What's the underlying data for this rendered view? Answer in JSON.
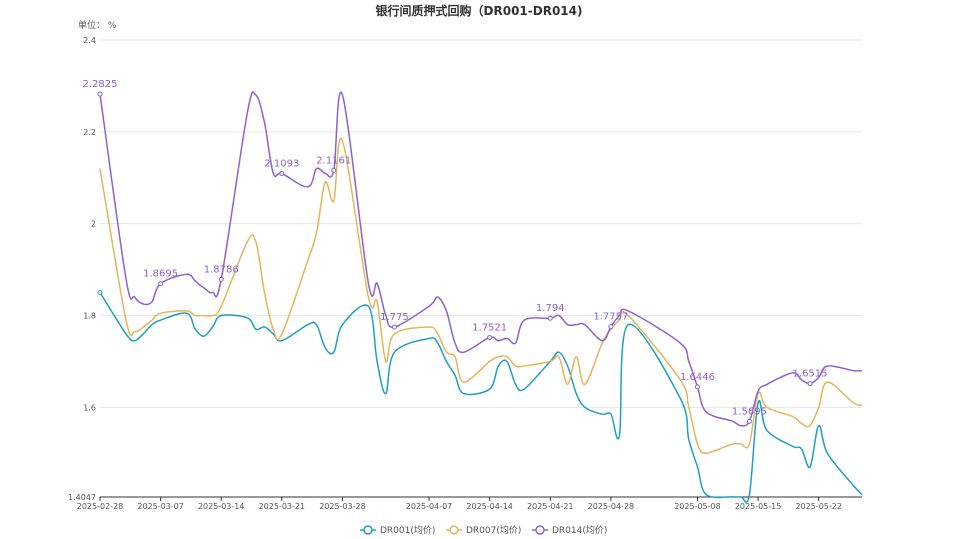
{
  "chart_data": {
    "type": "line",
    "title": "银行间质押式回购（DR001-DR014)",
    "unit_label": "单位： %",
    "ylim": [
      1.4047,
      2.4
    ],
    "y_ticks": [
      "2.4",
      "2.2",
      "2",
      "1.8",
      "1.6",
      "1.4047"
    ],
    "y_tick_values": [
      2.4,
      2.2,
      2.0,
      1.8,
      1.6,
      1.4047
    ],
    "x_start": "2025-02-28",
    "x_end": "2025-05-27",
    "x_ticks": [
      "2025-02-28",
      "2025-03-07",
      "2025-03-14",
      "2025-03-21",
      "2025-03-28",
      "2025-04-07",
      "2025-04-14",
      "2025-04-21",
      "2025-04-28",
      "2025-05-08",
      "2025-05-15",
      "2025-05-22"
    ],
    "grid": true,
    "legend_position": "bottom",
    "series": [
      {
        "name": "DR001(均价)",
        "color": "#1f9ec4",
        "points": [
          [
            "2025-02-28",
            1.85
          ],
          [
            "2025-03-03",
            1.76
          ],
          [
            "2025-03-04",
            1.745
          ],
          [
            "2025-03-05",
            1.76
          ],
          [
            "2025-03-06",
            1.78
          ],
          [
            "2025-03-07",
            1.79
          ],
          [
            "2025-03-10",
            1.805
          ],
          [
            "2025-03-11",
            1.77
          ],
          [
            "2025-03-12",
            1.755
          ],
          [
            "2025-03-13",
            1.775
          ],
          [
            "2025-03-14",
            1.8
          ],
          [
            "2025-03-17",
            1.795
          ],
          [
            "2025-03-18",
            1.77
          ],
          [
            "2025-03-19",
            1.775
          ],
          [
            "2025-03-20",
            1.76
          ],
          [
            "2025-03-21",
            1.745
          ],
          [
            "2025-03-24",
            1.78
          ],
          [
            "2025-03-25",
            1.78
          ],
          [
            "2025-03-26",
            1.73
          ],
          [
            "2025-03-27",
            1.72
          ],
          [
            "2025-03-28",
            1.78
          ],
          [
            "2025-03-31",
            1.82
          ],
          [
            "2025-04-01",
            1.7
          ],
          [
            "2025-04-02",
            1.63
          ],
          [
            "2025-04-03",
            1.72
          ],
          [
            "2025-04-07",
            1.75
          ],
          [
            "2025-04-08",
            1.74
          ],
          [
            "2025-04-09",
            1.7
          ],
          [
            "2025-04-10",
            1.67
          ],
          [
            "2025-04-11",
            1.63
          ],
          [
            "2025-04-14",
            1.64
          ],
          [
            "2025-04-15",
            1.69
          ],
          [
            "2025-04-16",
            1.7
          ],
          [
            "2025-04-17",
            1.65
          ],
          [
            "2025-04-18",
            1.64
          ],
          [
            "2025-04-21",
            1.7
          ],
          [
            "2025-04-22",
            1.72
          ],
          [
            "2025-04-23",
            1.69
          ],
          [
            "2025-04-24",
            1.63
          ],
          [
            "2025-04-25",
            1.6
          ],
          [
            "2025-04-27",
            1.585
          ],
          [
            "2025-04-28",
            1.585
          ],
          [
            "2025-04-29",
            1.54
          ],
          [
            "2025-04-30",
            1.78
          ],
          [
            "2025-05-06",
            1.62
          ],
          [
            "2025-05-07",
            1.53
          ],
          [
            "2025-05-08",
            1.47
          ],
          [
            "2025-05-09",
            1.41
          ],
          [
            "2025-05-12",
            1.405
          ],
          [
            "2025-05-13",
            1.405
          ],
          [
            "2025-05-14",
            1.41
          ],
          [
            "2025-05-15",
            1.61
          ],
          [
            "2025-05-16",
            1.55
          ],
          [
            "2025-05-19",
            1.515
          ],
          [
            "2025-05-20",
            1.51
          ],
          [
            "2025-05-21",
            1.47
          ],
          [
            "2025-05-22",
            1.56
          ],
          [
            "2025-05-23",
            1.5
          ],
          [
            "2025-05-26",
            1.43
          ],
          [
            "2025-05-27",
            1.41
          ]
        ]
      },
      {
        "name": "DR007(均价)",
        "color": "#e5b55a",
        "points": [
          [
            "2025-02-28",
            2.12
          ],
          [
            "2025-03-03",
            1.79
          ],
          [
            "2025-03-04",
            1.765
          ],
          [
            "2025-03-05",
            1.775
          ],
          [
            "2025-03-06",
            1.79
          ],
          [
            "2025-03-07",
            1.805
          ],
          [
            "2025-03-10",
            1.81
          ],
          [
            "2025-03-11",
            1.8
          ],
          [
            "2025-03-12",
            1.8
          ],
          [
            "2025-03-13",
            1.8
          ],
          [
            "2025-03-14",
            1.82
          ],
          [
            "2025-03-17",
            1.96
          ],
          [
            "2025-03-18",
            1.96
          ],
          [
            "2025-03-19",
            1.85
          ],
          [
            "2025-03-20",
            1.77
          ],
          [
            "2025-03-21",
            1.76
          ],
          [
            "2025-03-24",
            1.92
          ],
          [
            "2025-03-25",
            1.98
          ],
          [
            "2025-03-26",
            2.09
          ],
          [
            "2025-03-27",
            2.05
          ],
          [
            "2025-03-28",
            2.18
          ],
          [
            "2025-03-31",
            1.84
          ],
          [
            "2025-04-01",
            1.83
          ],
          [
            "2025-04-02",
            1.7
          ],
          [
            "2025-04-03",
            1.76
          ],
          [
            "2025-04-07",
            1.775
          ],
          [
            "2025-04-08",
            1.76
          ],
          [
            "2025-04-09",
            1.72
          ],
          [
            "2025-04-10",
            1.71
          ],
          [
            "2025-04-11",
            1.655
          ],
          [
            "2025-04-14",
            1.7
          ],
          [
            "2025-04-15",
            1.71
          ],
          [
            "2025-04-16",
            1.71
          ],
          [
            "2025-04-17",
            1.69
          ],
          [
            "2025-04-18",
            1.69
          ],
          [
            "2025-04-21",
            1.7
          ],
          [
            "2025-04-22",
            1.71
          ],
          [
            "2025-04-23",
            1.65
          ],
          [
            "2025-04-24",
            1.71
          ],
          [
            "2025-04-25",
            1.65
          ],
          [
            "2025-04-27",
            1.74
          ],
          [
            "2025-04-28",
            1.77
          ],
          [
            "2025-04-29",
            1.79
          ],
          [
            "2025-04-30",
            1.8
          ],
          [
            "2025-05-06",
            1.66
          ],
          [
            "2025-05-07",
            1.6
          ],
          [
            "2025-05-08",
            1.52
          ],
          [
            "2025-05-09",
            1.5
          ],
          [
            "2025-05-12",
            1.52
          ],
          [
            "2025-05-13",
            1.52
          ],
          [
            "2025-05-14",
            1.52
          ],
          [
            "2025-05-15",
            1.63
          ],
          [
            "2025-05-16",
            1.6
          ],
          [
            "2025-05-19",
            1.58
          ],
          [
            "2025-05-20",
            1.565
          ],
          [
            "2025-05-21",
            1.56
          ],
          [
            "2025-05-22",
            1.6
          ],
          [
            "2025-05-23",
            1.655
          ],
          [
            "2025-05-26",
            1.61
          ],
          [
            "2025-05-27",
            1.605
          ]
        ]
      },
      {
        "name": "DR014(均价)",
        "color": "#8a63d2",
        "points": [
          [
            "2025-02-28",
            2.2825
          ],
          [
            "2025-03-03",
            1.88
          ],
          [
            "2025-03-04",
            1.84
          ],
          [
            "2025-03-05",
            1.825
          ],
          [
            "2025-03-06",
            1.83
          ],
          [
            "2025-03-07",
            1.8695
          ],
          [
            "2025-03-10",
            1.89
          ],
          [
            "2025-03-11",
            1.875
          ],
          [
            "2025-03-12",
            1.86
          ],
          [
            "2025-03-13",
            1.85
          ],
          [
            "2025-03-14",
            1.8786
          ],
          [
            "2025-03-17",
            2.24
          ],
          [
            "2025-03-18",
            2.28
          ],
          [
            "2025-03-19",
            2.22
          ],
          [
            "2025-03-20",
            2.11
          ],
          [
            "2025-03-21",
            2.1093
          ],
          [
            "2025-03-24",
            2.08
          ],
          [
            "2025-03-25",
            2.12
          ],
          [
            "2025-03-26",
            2.11
          ],
          [
            "2025-03-27",
            2.1161
          ],
          [
            "2025-03-28",
            2.28
          ],
          [
            "2025-03-31",
            1.87
          ],
          [
            "2025-04-01",
            1.87
          ],
          [
            "2025-04-02",
            1.8
          ],
          [
            "2025-04-03",
            1.775
          ],
          [
            "2025-04-07",
            1.82
          ],
          [
            "2025-04-08",
            1.84
          ],
          [
            "2025-04-09",
            1.81
          ],
          [
            "2025-04-10",
            1.74
          ],
          [
            "2025-04-11",
            1.72
          ],
          [
            "2025-04-14",
            1.7521
          ],
          [
            "2025-04-15",
            1.745
          ],
          [
            "2025-04-16",
            1.75
          ],
          [
            "2025-04-17",
            1.74
          ],
          [
            "2025-04-18",
            1.79
          ],
          [
            "2025-04-21",
            1.794
          ],
          [
            "2025-04-22",
            1.8
          ],
          [
            "2025-04-23",
            1.78
          ],
          [
            "2025-04-24",
            1.78
          ],
          [
            "2025-04-25",
            1.78
          ],
          [
            "2025-04-27",
            1.745
          ],
          [
            "2025-04-28",
            1.7757
          ],
          [
            "2025-04-29",
            1.8
          ],
          [
            "2025-04-30",
            1.81
          ],
          [
            "2025-05-06",
            1.74
          ],
          [
            "2025-05-07",
            1.7
          ],
          [
            "2025-05-08",
            1.6446
          ],
          [
            "2025-05-09",
            1.59
          ],
          [
            "2025-05-12",
            1.57
          ],
          [
            "2025-05-13",
            1.56
          ],
          [
            "2025-05-14",
            1.5695
          ],
          [
            "2025-05-15",
            1.635
          ],
          [
            "2025-05-16",
            1.65
          ],
          [
            "2025-05-19",
            1.675
          ],
          [
            "2025-05-20",
            1.66
          ],
          [
            "2025-05-21",
            1.6515
          ],
          [
            "2025-05-22",
            1.665
          ],
          [
            "2025-05-23",
            1.69
          ],
          [
            "2025-05-26",
            1.68
          ],
          [
            "2025-05-27",
            1.68
          ]
        ]
      }
    ],
    "data_labels": [
      {
        "series": 2,
        "x": "2025-02-28",
        "text": "2.2825"
      },
      {
        "series": 2,
        "x": "2025-03-07",
        "text": "1.8695"
      },
      {
        "series": 2,
        "x": "2025-03-14",
        "text": "1.8786"
      },
      {
        "series": 2,
        "x": "2025-03-21",
        "text": "2.1093"
      },
      {
        "series": 2,
        "x": "2025-03-27",
        "text": "2.1161"
      },
      {
        "series": 2,
        "x": "2025-04-03",
        "text": "1.775"
      },
      {
        "series": 2,
        "x": "2025-04-14",
        "text": "1.7521"
      },
      {
        "series": 2,
        "x": "2025-04-21",
        "text": "1.794"
      },
      {
        "series": 2,
        "x": "2025-04-28",
        "text": "1.7757"
      },
      {
        "series": 2,
        "x": "2025-05-08",
        "text": "1.6446"
      },
      {
        "series": 2,
        "x": "2025-05-14",
        "text": "1.5695"
      },
      {
        "series": 2,
        "x": "2025-05-21",
        "text": "1.6515"
      }
    ]
  }
}
